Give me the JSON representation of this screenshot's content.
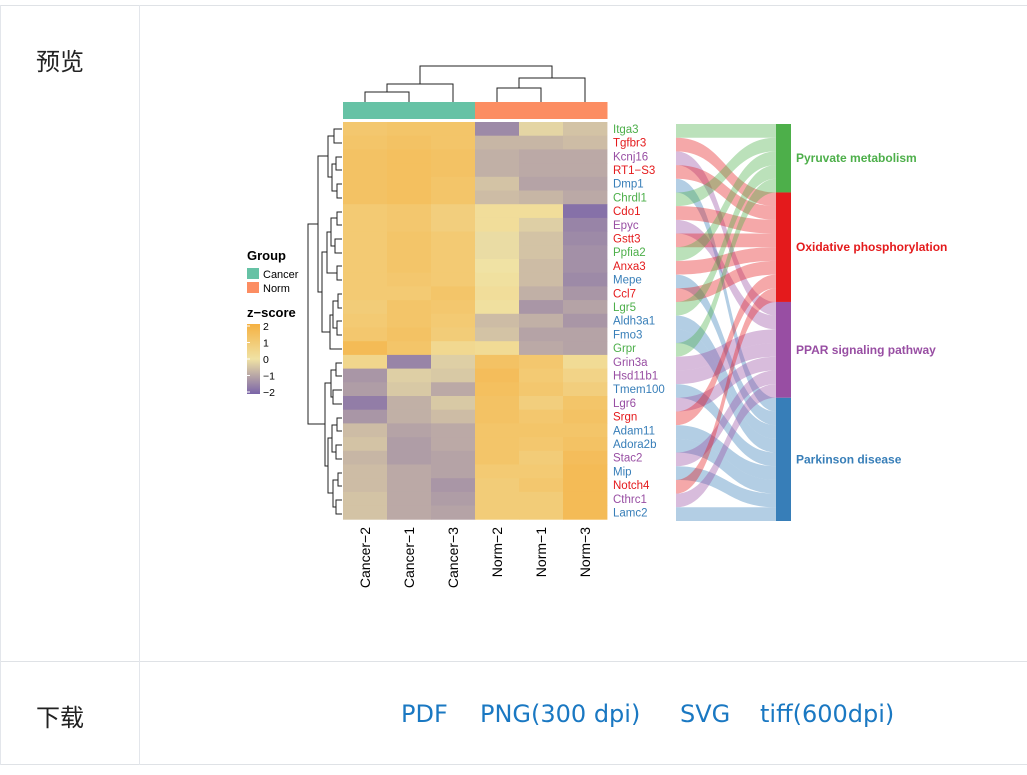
{
  "rows": {
    "preview_label": "预览",
    "download_label": "下载"
  },
  "downloads": [
    {
      "label": "PDF"
    },
    {
      "label": "PNG(300 dpi)"
    },
    {
      "label": "SVG"
    },
    {
      "label": "tiff(600dpi)"
    }
  ],
  "chart_data": {
    "type": "heatmap",
    "columns": [
      "Cancer−2",
      "Cancer−1",
      "Cancer−3",
      "Norm−2",
      "Norm−1",
      "Norm−3"
    ],
    "column_groups": [
      "Cancer",
      "Cancer",
      "Cancer",
      "Norm",
      "Norm",
      "Norm"
    ],
    "genes": [
      {
        "name": "Itga3",
        "pathway": "Pyruvate metabolism"
      },
      {
        "name": "Tgfbr3",
        "pathway": "Oxidative phosphorylation"
      },
      {
        "name": "Kcnj16",
        "pathway": "PPAR signaling pathway"
      },
      {
        "name": "RT1−S3",
        "pathway": "Oxidative phosphorylation"
      },
      {
        "name": "Dmp1",
        "pathway": "Parkinson disease"
      },
      {
        "name": "Chrdl1",
        "pathway": "Pyruvate metabolism"
      },
      {
        "name": "Cdo1",
        "pathway": "Oxidative phosphorylation"
      },
      {
        "name": "Epyc",
        "pathway": "PPAR signaling pathway"
      },
      {
        "name": "Gstt3",
        "pathway": "Oxidative phosphorylation"
      },
      {
        "name": "Ppfia2",
        "pathway": "Pyruvate metabolism"
      },
      {
        "name": "Anxa3",
        "pathway": "Oxidative phosphorylation"
      },
      {
        "name": "Mepe",
        "pathway": "Parkinson disease"
      },
      {
        "name": "Ccl7",
        "pathway": "Oxidative phosphorylation"
      },
      {
        "name": "Lgr5",
        "pathway": "Pyruvate metabolism"
      },
      {
        "name": "Aldh3a1",
        "pathway": "Parkinson disease"
      },
      {
        "name": "Fmo3",
        "pathway": "Parkinson disease"
      },
      {
        "name": "Grpr",
        "pathway": "Pyruvate metabolism"
      },
      {
        "name": "Grin3a",
        "pathway": "PPAR signaling pathway"
      },
      {
        "name": "Hsd11b1",
        "pathway": "PPAR signaling pathway"
      },
      {
        "name": "Tmem100",
        "pathway": "Parkinson disease"
      },
      {
        "name": "Lgr6",
        "pathway": "PPAR signaling pathway"
      },
      {
        "name": "Srgn",
        "pathway": "Oxidative phosphorylation"
      },
      {
        "name": "Adam11",
        "pathway": "Parkinson disease"
      },
      {
        "name": "Adora2b",
        "pathway": "Parkinson disease"
      },
      {
        "name": "Stac2",
        "pathway": "PPAR signaling pathway"
      },
      {
        "name": "Mip",
        "pathway": "Parkinson disease"
      },
      {
        "name": "Notch4",
        "pathway": "Oxidative phosphorylation"
      },
      {
        "name": "Cthrc1",
        "pathway": "PPAR signaling pathway"
      },
      {
        "name": "Lamc2",
        "pathway": "Parkinson disease"
      }
    ],
    "z_scores": [
      [
        1.1,
        1.2,
        1.2,
        -1.4,
        -0.2,
        -0.5
      ],
      [
        1.2,
        1.3,
        1.2,
        -0.7,
        -0.7,
        -0.6
      ],
      [
        1.3,
        1.4,
        1.3,
        -0.8,
        -0.9,
        -0.9
      ],
      [
        1.3,
        1.4,
        1.3,
        -0.8,
        -0.9,
        -0.9
      ],
      [
        1.3,
        1.4,
        1.2,
        -0.5,
        -1.0,
        -1.0
      ],
      [
        1.3,
        1.4,
        1.2,
        -0.6,
        -0.7,
        -0.9
      ],
      [
        1.0,
        1.1,
        0.8,
        0.2,
        0.2,
        -1.8
      ],
      [
        1.0,
        1.1,
        0.8,
        0.2,
        -0.3,
        -1.5
      ],
      [
        1.0,
        1.2,
        1.0,
        -0.1,
        -0.5,
        -1.4
      ],
      [
        1.0,
        1.2,
        1.0,
        -0.1,
        -0.5,
        -1.3
      ],
      [
        1.0,
        1.2,
        1.0,
        0.0,
        -0.6,
        -1.3
      ],
      [
        1.0,
        1.1,
        1.0,
        0.1,
        -0.6,
        -1.4
      ],
      [
        1.0,
        1.0,
        1.2,
        0.2,
        -0.8,
        -1.2
      ],
      [
        0.9,
        1.2,
        1.1,
        0.1,
        -1.2,
        -1.0
      ],
      [
        1.0,
        1.2,
        1.0,
        -0.6,
        -0.8,
        -1.2
      ],
      [
        1.1,
        1.3,
        0.9,
        -0.5,
        -1.0,
        -1.0
      ],
      [
        1.6,
        1.2,
        0.4,
        0.3,
        -0.9,
        -1.0
      ],
      [
        0.5,
        -1.5,
        -0.3,
        1.3,
        1.1,
        0.3
      ],
      [
        -1.2,
        -0.3,
        -0.4,
        1.5,
        1.0,
        0.6
      ],
      [
        -1.1,
        -0.4,
        -0.9,
        1.4,
        1.1,
        0.8
      ],
      [
        -1.6,
        -0.8,
        -0.4,
        1.3,
        0.8,
        1.2
      ],
      [
        -1.2,
        -0.8,
        -0.6,
        1.3,
        1.1,
        1.3
      ],
      [
        -0.6,
        -1.0,
        -0.9,
        1.2,
        1.2,
        1.2
      ],
      [
        -0.5,
        -1.1,
        -0.9,
        1.2,
        1.1,
        1.3
      ],
      [
        -0.7,
        -1.1,
        -1.0,
        1.2,
        0.9,
        1.5
      ],
      [
        -0.6,
        -0.9,
        -1.0,
        1.0,
        1.0,
        1.6
      ],
      [
        -0.6,
        -0.9,
        -1.2,
        0.9,
        1.1,
        1.6
      ],
      [
        -0.5,
        -0.9,
        -1.1,
        0.9,
        0.9,
        1.6
      ],
      [
        -0.5,
        -0.9,
        -1.0,
        0.9,
        0.9,
        1.6
      ]
    ],
    "pathways": [
      {
        "name": "Pyruvate metabolism",
        "color": "#4daf4a"
      },
      {
        "name": "Oxidative phosphorylation",
        "color": "#e41a1c"
      },
      {
        "name": "PPAR signaling pathway",
        "color": "#984ea3"
      },
      {
        "name": "Parkinson disease",
        "color": "#377eb8"
      }
    ],
    "legend_group": {
      "title": "Group",
      "items": [
        {
          "label": "Cancer",
          "color": "#66c2a5"
        },
        {
          "label": "Norm",
          "color": "#fc8d62"
        }
      ]
    },
    "legend_zscore": {
      "title": "z−score",
      "ticks": [
        "2",
        "1",
        "0",
        "−1",
        "−2"
      ],
      "range": [
        -2,
        2
      ]
    }
  }
}
